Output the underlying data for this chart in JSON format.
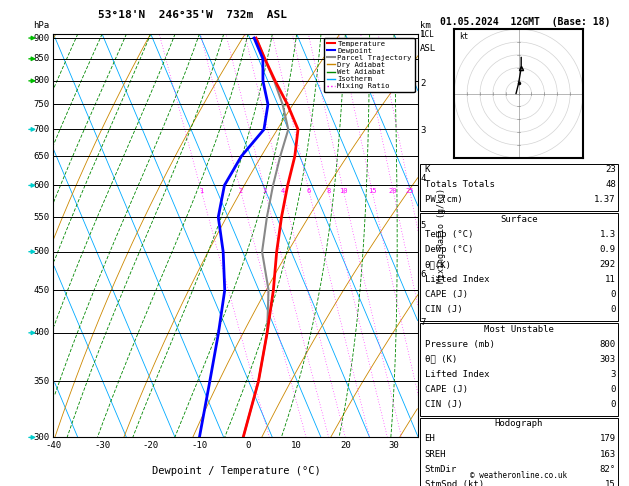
{
  "title_left": "53°18'N  246°35'W  732m  ASL",
  "title_right": "01.05.2024  12GMT  (Base: 18)",
  "xlabel": "Dewpoint / Temperature (°C)",
  "ylabel_left": "hPa",
  "pressure_levels": [
    300,
    350,
    400,
    450,
    500,
    550,
    600,
    650,
    700,
    750,
    800,
    850,
    900
  ],
  "pressure_ticks": [
    300,
    350,
    400,
    450,
    500,
    550,
    600,
    650,
    700,
    750,
    800,
    850,
    900
  ],
  "T_min": -40,
  "T_max": 35,
  "P_min": 300,
  "P_max": 910,
  "temp_ticks": [
    -40,
    -30,
    -20,
    -10,
    0,
    10,
    20,
    30
  ],
  "skew": 35,
  "temp_color": "#ff0000",
  "dewpoint_color": "#0000ff",
  "parcel_color": "#888888",
  "dry_adiabat_color": "#cc8800",
  "wet_adiabat_color": "#008800",
  "isotherm_color": "#00aaff",
  "mixing_ratio_color": "#ff00ff",
  "km_ticks": [
    1,
    2,
    3,
    4,
    5,
    6,
    7
  ],
  "km_pressures": [
    910,
    795,
    698,
    612,
    537,
    470,
    411
  ],
  "mixing_ratios": [
    1,
    2,
    3,
    4,
    6,
    8,
    10,
    15,
    20,
    25
  ],
  "stats_K": 23,
  "stats_TT": 48,
  "stats_PW": 1.37,
  "surf_temp": 1.3,
  "surf_dewp": 0.9,
  "surf_thetae": 292,
  "surf_li": 11,
  "surf_cape": 0,
  "surf_cin": 0,
  "mu_press": 800,
  "mu_thetae": 303,
  "mu_li": 3,
  "mu_cape": 0,
  "mu_cin": 0,
  "hodo_eh": 179,
  "hodo_sreh": 163,
  "hodo_stmdir": "82°",
  "hodo_stmspd": 15,
  "temp_profile_T": [
    -36,
    -28,
    -22,
    -17,
    -13,
    -9,
    -5,
    -1,
    2,
    2,
    1.5,
    1.3,
    1.3
  ],
  "temp_profile_P": [
    300,
    350,
    400,
    450,
    500,
    550,
    600,
    650,
    700,
    750,
    800,
    850,
    900
  ],
  "dewp_profile_T": [
    -45,
    -38,
    -32,
    -27,
    -24,
    -22,
    -18,
    -12,
    -5,
    -2,
    -1,
    0.9,
    0.9
  ],
  "dewp_profile_P": [
    300,
    350,
    400,
    450,
    500,
    550,
    600,
    650,
    700,
    750,
    800,
    850,
    900
  ],
  "parcel_profile_T": [
    -36,
    -28,
    -22,
    -18,
    -16,
    -12,
    -8,
    -4,
    0,
    1,
    1.3,
    1.3,
    1.3
  ],
  "parcel_profile_P": [
    300,
    350,
    400,
    450,
    500,
    550,
    600,
    650,
    700,
    750,
    800,
    850,
    900
  ],
  "wind_pressures": [
    300,
    400,
    500,
    600,
    700,
    800,
    850,
    900
  ],
  "wind_colors": [
    "#00cccc",
    "#00cccc",
    "#00cccc",
    "#00cccc",
    "#00cccc",
    "#00bb00",
    "#00bb00",
    "#00bb00"
  ],
  "bg_color": "#ffffff"
}
